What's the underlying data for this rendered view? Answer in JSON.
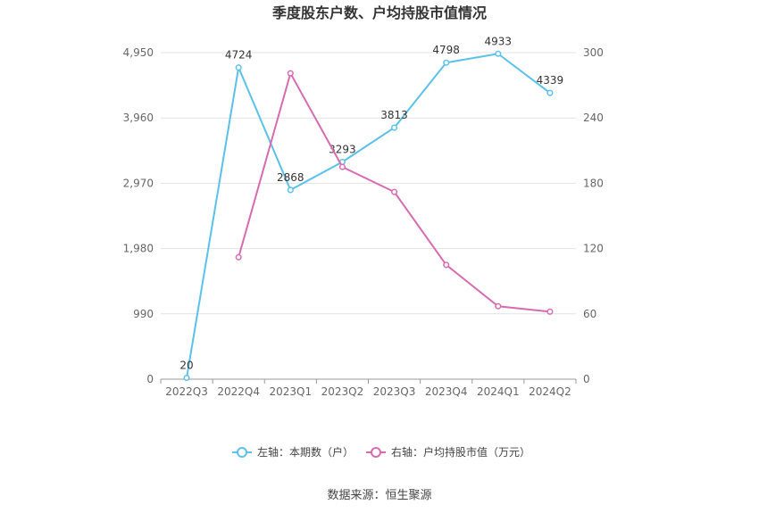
{
  "chart_data": {
    "type": "line",
    "title": "季度股东户数、户均持股市值情况",
    "categories": [
      "2022Q3",
      "2022Q4",
      "2023Q1",
      "2023Q2",
      "2023Q3",
      "2023Q4",
      "2024Q1",
      "2024Q2"
    ],
    "y_left": {
      "ticks": [
        "0",
        "990",
        "1,980",
        "2,970",
        "3,960",
        "4,950"
      ],
      "range": [
        0,
        4950
      ]
    },
    "y_right": {
      "ticks": [
        "0",
        "60",
        "120",
        "180",
        "240",
        "300"
      ],
      "range": [
        0,
        300
      ]
    },
    "series": [
      {
        "name": "左轴：本期数（户）",
        "axis": "left",
        "color": "#5bc1ea",
        "values": [
          20,
          4724,
          2868,
          3293,
          3813,
          4798,
          4933,
          4339
        ],
        "labels": [
          "20",
          "4724",
          "2868",
          "3293",
          "3813",
          "4798",
          "4933",
          "4339"
        ]
      },
      {
        "name": "右轴：户均持股市值（万元）",
        "axis": "right",
        "color": "#d66bb0",
        "values": [
          null,
          112,
          281,
          195,
          172,
          105,
          67,
          62
        ]
      }
    ],
    "grid": true,
    "legend_position": "bottom"
  },
  "footer": {
    "source": "数据来源：恒生聚源"
  }
}
